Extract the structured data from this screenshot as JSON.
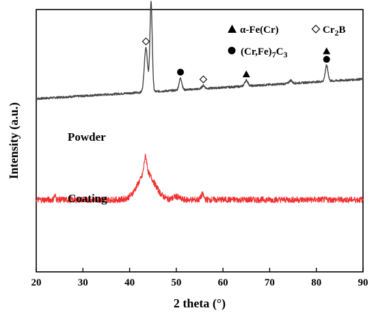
{
  "chart_data": {
    "type": "line",
    "xlabel": "2 theta (°)",
    "ylabel": "Intensity (a.u.)",
    "xlim": [
      20,
      90
    ],
    "xticks": [
      20,
      30,
      40,
      50,
      60,
      70,
      80,
      90
    ],
    "yticks_shown": false,
    "grid": false,
    "legend_position": "top-right",
    "series": [
      {
        "name": "Powder",
        "color": "#444444",
        "baseline_start": 0.66,
        "baseline_end": 0.735,
        "noise": 0.004,
        "peaks": [
          {
            "x": 43.5,
            "height": 0.17,
            "width": 0.35
          },
          {
            "x": 44.6,
            "height": 0.34,
            "width": 0.25
          },
          {
            "x": 50.9,
            "height": 0.045,
            "width": 0.3
          },
          {
            "x": 55.8,
            "height": 0.012,
            "width": 0.3
          },
          {
            "x": 65.0,
            "height": 0.022,
            "width": 0.35
          },
          {
            "x": 74.5,
            "height": 0.012,
            "width": 0.3
          },
          {
            "x": 82.2,
            "height": 0.06,
            "width": 0.3
          }
        ]
      },
      {
        "name": "Coating",
        "color": "#f03030",
        "baseline_start": 0.275,
        "baseline_end": 0.275,
        "noise": 0.012,
        "peaks": [
          {
            "x": 43.6,
            "height": 0.1,
            "width": 1.8
          },
          {
            "x": 43.4,
            "height": 0.065,
            "width": 0.3
          },
          {
            "x": 55.6,
            "height": 0.02,
            "width": 0.3
          },
          {
            "x": 24.0,
            "height": 0.015,
            "width": 0.2
          },
          {
            "x": 50.0,
            "height": 0.012,
            "width": 0.6
          }
        ]
      }
    ],
    "peak_markers": [
      {
        "phase": "alpha-Fe(Cr)",
        "symbol": "triangle",
        "x": 44.6,
        "row": 3
      },
      {
        "phase": "(Cr,Fe)7C3",
        "symbol": "circle",
        "x": 44.6,
        "row": 2
      },
      {
        "phase": "Cr2B",
        "symbol": "diamond",
        "x": 44.6,
        "row": 1
      },
      {
        "phase": "Cr2B",
        "symbol": "diamond",
        "x": 43.5,
        "row": 1
      },
      {
        "phase": "(Cr,Fe)7C3",
        "symbol": "circle",
        "x": 50.9,
        "row": 1
      },
      {
        "phase": "Cr2B",
        "symbol": "diamond",
        "x": 55.8,
        "row": 1
      },
      {
        "phase": "alpha-Fe(Cr)",
        "symbol": "triangle",
        "x": 65.0,
        "row": 1
      },
      {
        "phase": "alpha-Fe(Cr)",
        "symbol": "triangle",
        "x": 82.2,
        "row": 2
      },
      {
        "phase": "(Cr,Fe)7C3",
        "symbol": "circle",
        "x": 82.2,
        "row": 1
      }
    ],
    "legend": [
      {
        "symbol": "triangle",
        "label": "α-Fe(Cr)"
      },
      {
        "symbol": "diamond",
        "label": "Cr",
        "sub": "2",
        "rest": "B"
      },
      {
        "symbol": "circle",
        "label": "(Cr,Fe)",
        "sub": "7",
        "rest": "C",
        "sub2": "3"
      }
    ],
    "annotations": [
      {
        "series": "Powder",
        "text": "Powder"
      },
      {
        "series": "Coating",
        "text": "Coating"
      }
    ]
  }
}
